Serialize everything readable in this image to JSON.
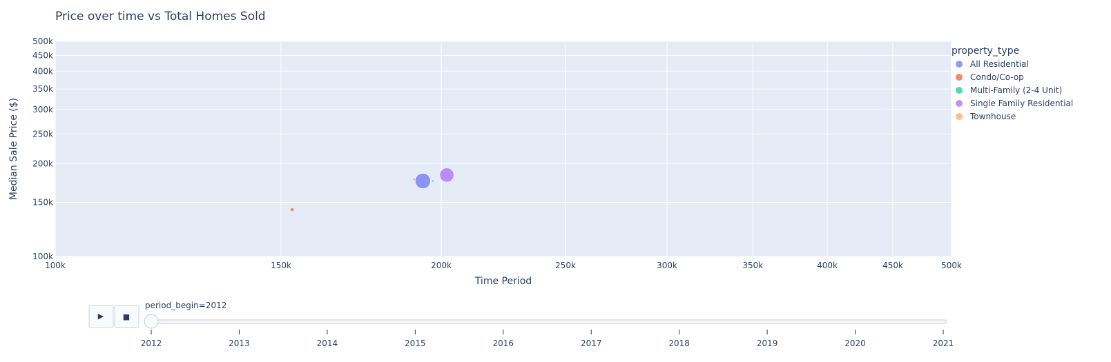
{
  "chart_data": {
    "type": "scatter",
    "title": "Price over time vs Total Homes Sold",
    "xlabel": "Time Period",
    "ylabel": "Median Sale Price ($)",
    "x_scale": "log",
    "y_scale": "log",
    "xlim": [
      100000,
      500000
    ],
    "ylim": [
      100000,
      500000
    ],
    "x_ticks": [
      {
        "value": 100000,
        "label": "100k"
      },
      {
        "value": 150000,
        "label": "150k"
      },
      {
        "value": 200000,
        "label": "200k"
      },
      {
        "value": 250000,
        "label": "250k"
      },
      {
        "value": 300000,
        "label": "300k"
      },
      {
        "value": 350000,
        "label": "350k"
      },
      {
        "value": 400000,
        "label": "400k"
      },
      {
        "value": 450000,
        "label": "450k"
      },
      {
        "value": 500000,
        "label": "500k"
      }
    ],
    "y_ticks": [
      {
        "value": 100000,
        "label": "100k"
      },
      {
        "value": 150000,
        "label": "150k"
      },
      {
        "value": 200000,
        "label": "200k"
      },
      {
        "value": 250000,
        "label": "250k"
      },
      {
        "value": 300000,
        "label": "300k"
      },
      {
        "value": 350000,
        "label": "350k"
      },
      {
        "value": 400000,
        "label": "400k"
      },
      {
        "value": 450000,
        "label": "450k"
      },
      {
        "value": 500000,
        "label": "500k"
      }
    ],
    "legend": {
      "title": "property_type",
      "placement": "top-right"
    },
    "series": [
      {
        "name": "All Residential",
        "color": "#636efa",
        "points": [
          {
            "x": 193500,
            "y": 176000,
            "size": 210000
          }
        ]
      },
      {
        "name": "Condo/Co-op",
        "color": "#EF553B",
        "points": [
          {
            "x": 153000,
            "y": 142000,
            "size": 9000
          }
        ]
      },
      {
        "name": "Multi-Family (2-4 Unit)",
        "color": "#00cc96",
        "points": [
          {
            "x": 197000,
            "y": 176000,
            "size": 500
          }
        ]
      },
      {
        "name": "Single Family Residential",
        "color": "#ab63fa",
        "points": [
          {
            "x": 202000,
            "y": 184000,
            "size": 180000
          }
        ]
      },
      {
        "name": "Townhouse",
        "color": "#FFA15A",
        "points": [
          {
            "x": 190500,
            "y": 178000,
            "size": 4000
          }
        ]
      }
    ]
  },
  "slider": {
    "current_label": "period_begin=2012",
    "current_value": "2012",
    "steps": [
      "2012",
      "2013",
      "2014",
      "2015",
      "2016",
      "2017",
      "2018",
      "2019",
      "2020",
      "2021"
    ]
  },
  "controls": {
    "play_icon": "▶",
    "stop_icon": "■"
  }
}
